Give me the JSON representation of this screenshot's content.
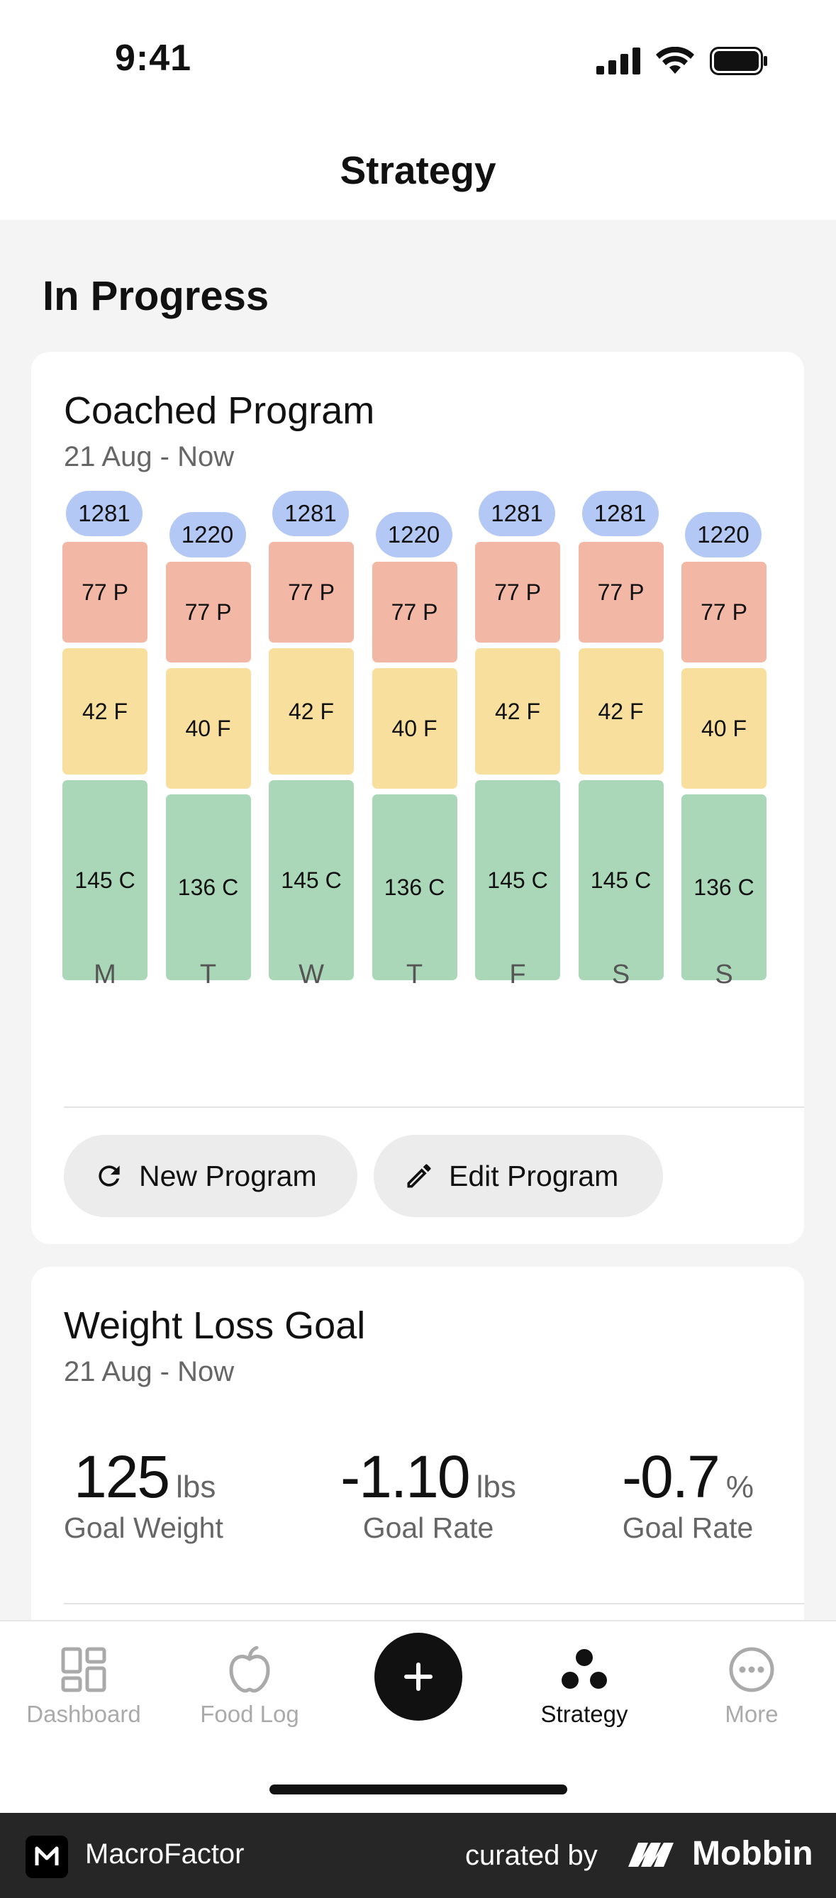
{
  "status_bar": {
    "time": "9:41"
  },
  "header": {
    "title": "Strategy"
  },
  "section": {
    "title": "In Progress"
  },
  "program_card": {
    "title": "Coached Program",
    "date_range": "21 Aug - Now",
    "days": [
      {
        "day": "M",
        "calories": "1281",
        "protein": "77 P",
        "fat": "42 F",
        "carbs": "145 C"
      },
      {
        "day": "T",
        "calories": "1220",
        "protein": "77 P",
        "fat": "40 F",
        "carbs": "136 C"
      },
      {
        "day": "W",
        "calories": "1281",
        "protein": "77 P",
        "fat": "42 F",
        "carbs": "145 C"
      },
      {
        "day": "T",
        "calories": "1220",
        "protein": "77 P",
        "fat": "40 F",
        "carbs": "136 C"
      },
      {
        "day": "F",
        "calories": "1281",
        "protein": "77 P",
        "fat": "42 F",
        "carbs": "145 C"
      },
      {
        "day": "S",
        "calories": "1281",
        "protein": "77 P",
        "fat": "42 F",
        "carbs": "145 C"
      },
      {
        "day": "S",
        "calories": "1220",
        "protein": "77 P",
        "fat": "40 F",
        "carbs": "136 C"
      }
    ],
    "new_program_label": "New Program",
    "edit_program_label": "Edit Program"
  },
  "goal_card": {
    "title": "Weight Loss Goal",
    "date_range": "21 Aug - Now",
    "stats": [
      {
        "value": "125",
        "unit": "lbs",
        "label": "Goal Weight"
      },
      {
        "value": "-1.10",
        "unit": "lbs",
        "label": "Goal Rate"
      },
      {
        "value": "-0.7",
        "unit": "%",
        "label": "Goal Rate"
      }
    ]
  },
  "tab_bar": {
    "tabs": [
      {
        "label": "Dashboard",
        "icon": "dashboard-icon",
        "active": false
      },
      {
        "label": "Food Log",
        "icon": "apple-icon",
        "active": false
      },
      {
        "label": "Strategy",
        "icon": "strategy-icon",
        "active": true
      },
      {
        "label": "More",
        "icon": "more-icon",
        "active": false
      }
    ],
    "add_icon": "plus-icon"
  },
  "footer": {
    "app_name": "MacroFactor",
    "curated_by": "curated by",
    "brand": "Mobbin"
  },
  "colors": {
    "calories": "#b4c8f6",
    "protein": "#f3b7a5",
    "fat": "#f8df9d",
    "carbs": "#abd7b9"
  }
}
